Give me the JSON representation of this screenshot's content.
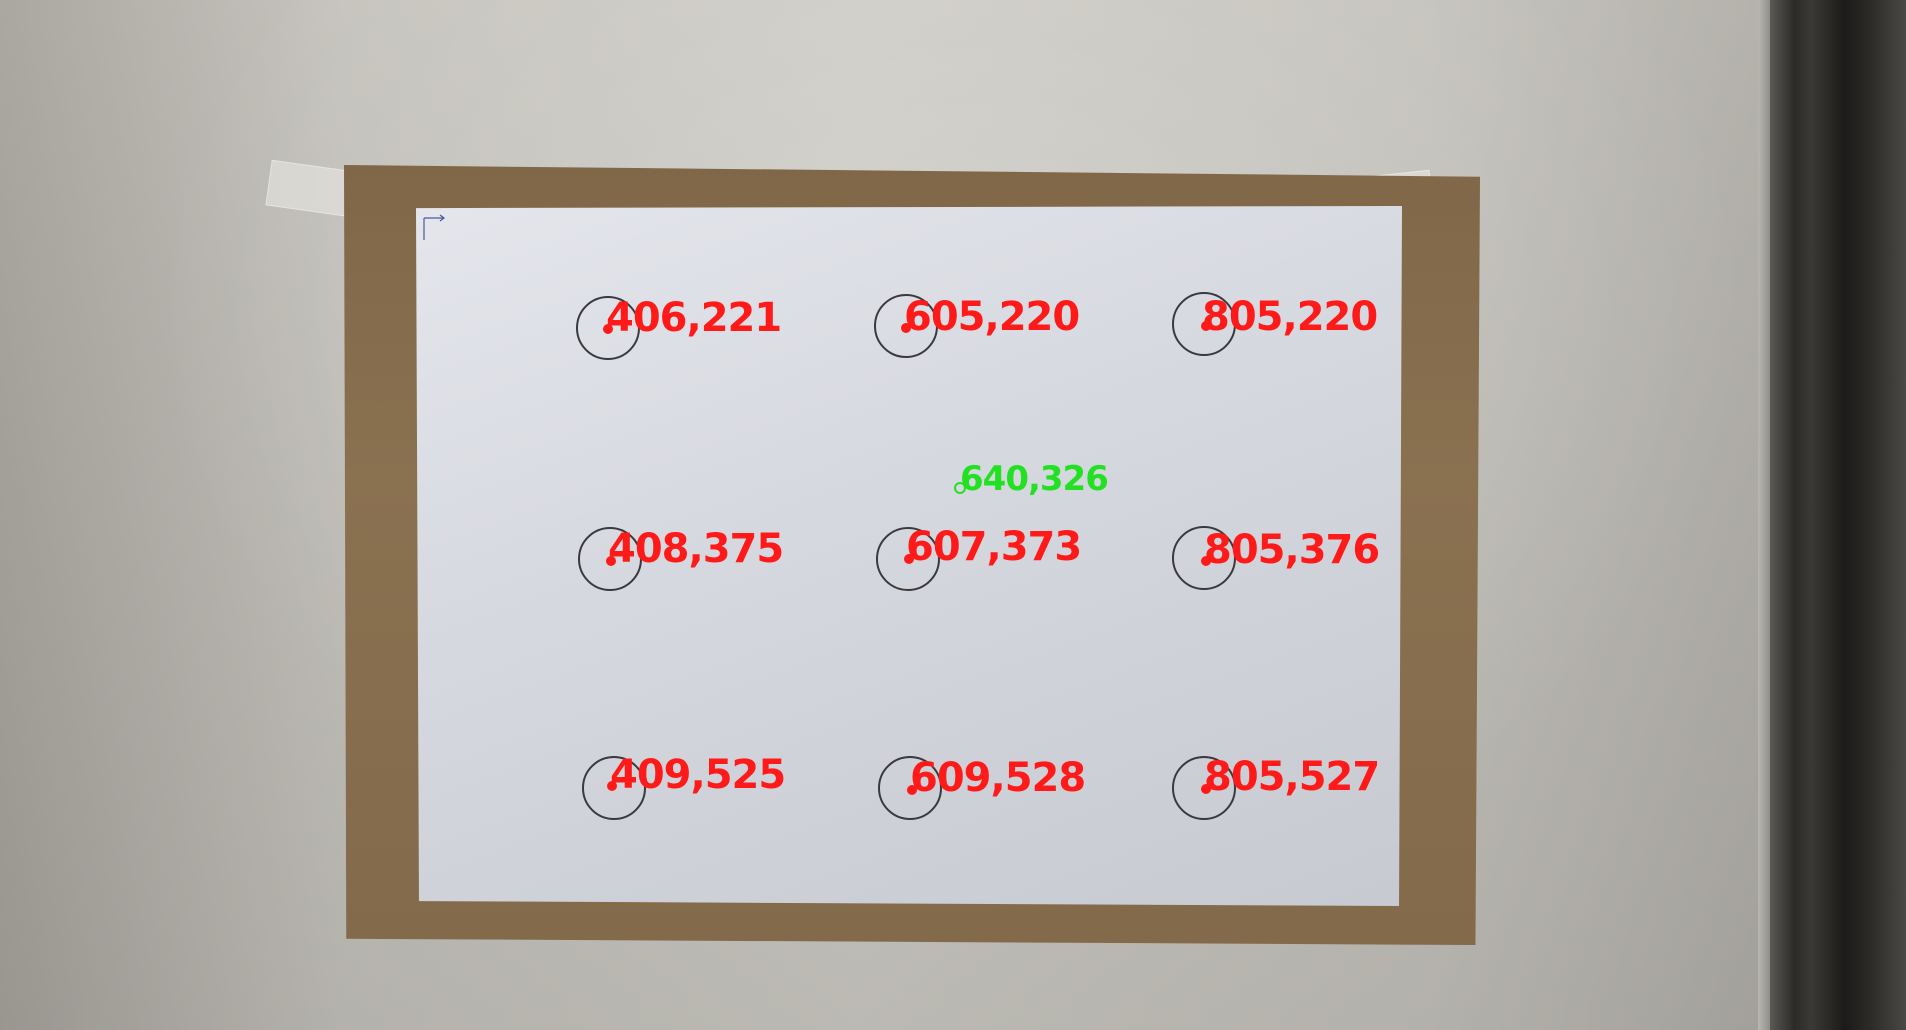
{
  "photo": {
    "markers": [
      {
        "label": "406,221",
        "note": "",
        "color": "#ff1a1a"
      },
      {
        "label": "605,220",
        "note": "",
        "color": "#ff1a1a"
      },
      {
        "label": "805,220",
        "note": "",
        "color": "#ff1a1a"
      },
      {
        "label": "408,375",
        "note": "",
        "color": "#ff1a1a"
      },
      {
        "label": "607,373",
        "note": "",
        "color": "#ff1a1a"
      },
      {
        "label": "805,376",
        "note": "",
        "color": "#ff1a1a"
      },
      {
        "label": "409,525",
        "note": "",
        "color": "#ff1a1a"
      },
      {
        "label": "609,528",
        "note": "",
        "color": "#ff1a1a"
      },
      {
        "label": "805,527",
        "note": "",
        "color": "#ff1a1a"
      }
    ],
    "center_marker": {
      "label": "640,326",
      "color": "#22e022"
    }
  }
}
